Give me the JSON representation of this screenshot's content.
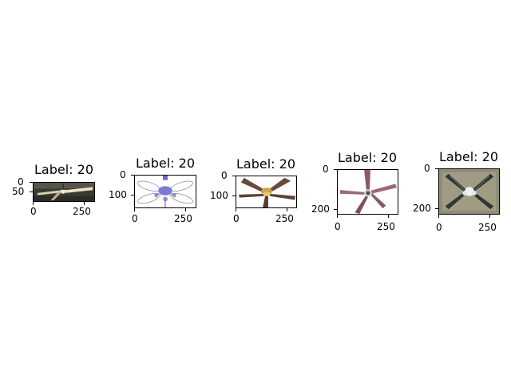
{
  "figure": {
    "panels": [
      {
        "title": "Label: 20",
        "image": "ceiling-fan-photo-dark-background",
        "xticks": [
          "0",
          "250"
        ],
        "yticks": [
          "0",
          "50"
        ]
      },
      {
        "title": "Label: 20",
        "image": "ceiling-fan-purple-lights",
        "xticks": [
          "0",
          "250"
        ],
        "yticks": [
          "0",
          "100"
        ]
      },
      {
        "title": "Label: 20",
        "image": "ceiling-fan-wood-blades",
        "xticks": [
          "0",
          "250"
        ],
        "yticks": [
          "0",
          "100"
        ]
      },
      {
        "title": "Label: 20",
        "image": "ceiling-fan-five-blades",
        "xticks": [
          "0",
          "250"
        ],
        "yticks": [
          "0",
          "200"
        ]
      },
      {
        "title": "Label: 20",
        "image": "ceiling-fan-four-blades-ceiling",
        "xticks": [
          "0",
          "250"
        ],
        "yticks": [
          "0",
          "200"
        ]
      }
    ]
  }
}
